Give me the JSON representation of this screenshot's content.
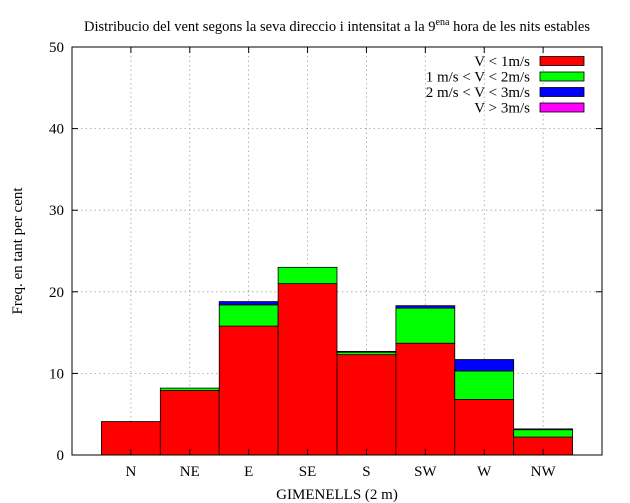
{
  "chart_data": {
    "type": "bar",
    "stacked": true,
    "title": {
      "main": "Distribucio del vent segons la seva direccio i intensitat a la 9",
      "superscript": "ena",
      "rest": " hora de les nits estables"
    },
    "xlabel": "GIMENELLS (2 m)",
    "ylabel": "Freq. en tant per cent",
    "categories": [
      "N",
      "NE",
      "E",
      "SE",
      "S",
      "SW",
      "W",
      "NW"
    ],
    "ylim": [
      0,
      50
    ],
    "yticks": [
      0,
      10,
      20,
      30,
      40,
      50
    ],
    "grid": true,
    "legend_position": "top-right",
    "series": [
      {
        "name": "V < 1m/s",
        "color": "#ff0000",
        "values": [
          4.1,
          7.9,
          15.8,
          21.0,
          12.3,
          13.7,
          6.8,
          2.2
        ]
      },
      {
        "name": "1 m/s < V < 2m/s",
        "color": "#00ff00",
        "values": [
          0.0,
          0.3,
          2.6,
          2.0,
          0.3,
          4.3,
          3.5,
          0.9
        ]
      },
      {
        "name": "2 m/s < V < 3m/s",
        "color": "#0000ff",
        "values": [
          0.0,
          0.0,
          0.4,
          0.0,
          0.1,
          0.3,
          1.4,
          0.1
        ]
      },
      {
        "name": "V > 3m/s",
        "color": "#ff00ff",
        "values": [
          0.0,
          0.0,
          0.0,
          0.0,
          0.0,
          0.0,
          0.0,
          0.0
        ]
      }
    ]
  }
}
